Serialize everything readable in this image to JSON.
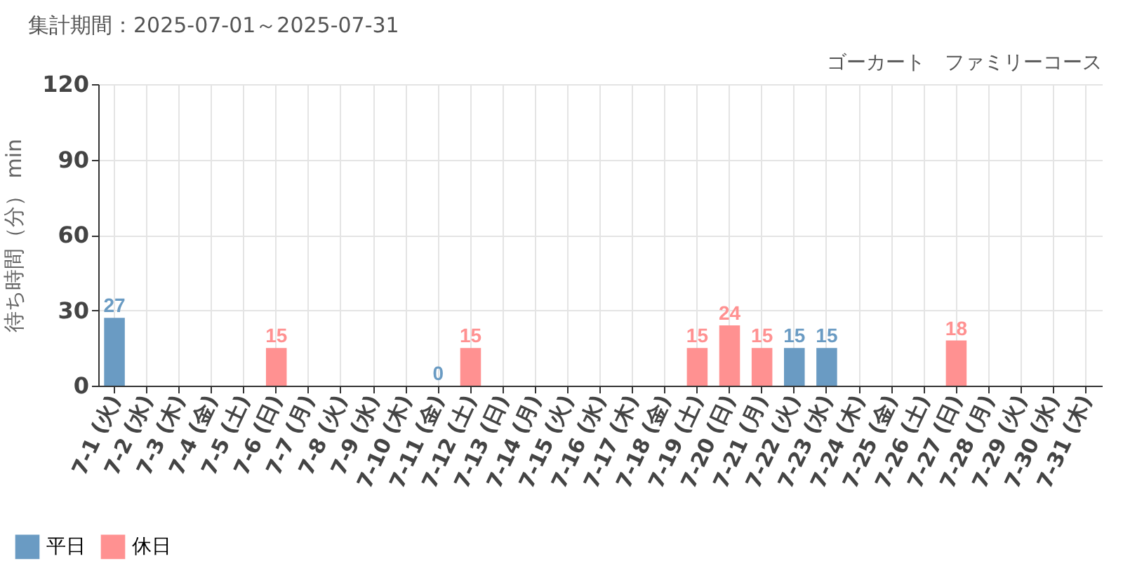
{
  "chart_data": {
    "type": "bar",
    "title": "集計期間：2025-07-01～2025-07-31",
    "subtitle": "ゴーカート　ファミリーコース",
    "ylabel": "待ち時間（分） min",
    "categories": [
      "7-1 (火)",
      "7-2 (水)",
      "7-3 (木)",
      "7-4 (金)",
      "7-5 (土)",
      "7-6 (日)",
      "7-7 (月)",
      "7-8 (火)",
      "7-9 (水)",
      "7-10 (木)",
      "7-11 (金)",
      "7-12 (土)",
      "7-13 (日)",
      "7-14 (月)",
      "7-15 (火)",
      "7-16 (水)",
      "7-17 (木)",
      "7-18 (金)",
      "7-19 (土)",
      "7-20 (日)",
      "7-21 (月)",
      "7-22 (火)",
      "7-23 (水)",
      "7-24 (木)",
      "7-25 (金)",
      "7-26 (土)",
      "7-27 (日)",
      "7-28 (月)",
      "7-29 (火)",
      "7-30 (水)",
      "7-31 (木)"
    ],
    "series": [
      {
        "name": "平日",
        "color": "#6a9bc3",
        "values": [
          27,
          null,
          null,
          null,
          null,
          null,
          null,
          null,
          null,
          null,
          0,
          null,
          null,
          null,
          null,
          null,
          null,
          null,
          null,
          null,
          null,
          15,
          15,
          null,
          null,
          null,
          null,
          null,
          null,
          null,
          null
        ]
      },
      {
        "name": "休日",
        "color": "#ff9191",
        "values": [
          null,
          null,
          null,
          null,
          null,
          15,
          null,
          null,
          null,
          null,
          null,
          15,
          null,
          null,
          null,
          null,
          null,
          null,
          15,
          24,
          15,
          null,
          null,
          null,
          null,
          null,
          18,
          null,
          null,
          null,
          null
        ]
      }
    ],
    "stacked": true,
    "ylim": [
      0,
      120
    ],
    "yticks": [
      0,
      30,
      60,
      90,
      120
    ],
    "grid": true,
    "legend": "bottom left",
    "data_labels": true
  }
}
